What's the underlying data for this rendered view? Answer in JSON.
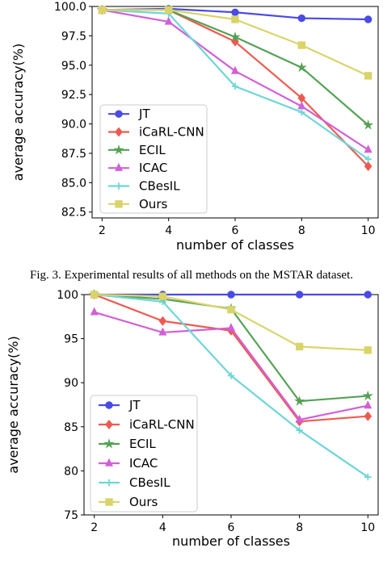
{
  "caption": "Fig. 3.   Experimental results of all methods on the MSTAR dataset.",
  "colors": {
    "JT": "#4a4ae6",
    "iCaRL-CNN": "#ee5a50",
    "ECIL": "#55a155",
    "ICAC": "#d160d6",
    "CBesIL": "#6fd6d6",
    "Ours": "#d9d46a"
  },
  "chart_data": [
    {
      "type": "line",
      "title": "",
      "xlabel": "number of classes",
      "ylabel": "average accuracy(%)",
      "x": [
        2,
        4,
        6,
        8,
        10
      ],
      "xlim": [
        1.7,
        10.3
      ],
      "ylim": [
        82.0,
        100.0
      ],
      "yticks": [
        82.5,
        85.0,
        87.5,
        90.0,
        92.5,
        95.0,
        97.5,
        100.0
      ],
      "ytick_labels": [
        "82.5",
        "85.0",
        "87.5",
        "90.0",
        "92.5",
        "95.0",
        "97.5",
        "100.0"
      ],
      "xtick_labels": [
        "2",
        "4",
        "6",
        "8",
        "10"
      ],
      "legend_position": "lower-left",
      "grid": false,
      "series": [
        {
          "name": "JT",
          "marker": "circle",
          "values": [
            99.7,
            99.8,
            99.5,
            99.0,
            98.9
          ]
        },
        {
          "name": "iCaRL-CNN",
          "marker": "diamond",
          "values": [
            99.7,
            99.7,
            97.0,
            92.2,
            86.4
          ]
        },
        {
          "name": "ECIL",
          "marker": "star",
          "values": [
            99.7,
            99.7,
            97.4,
            94.8,
            89.9
          ]
        },
        {
          "name": "ICAC",
          "marker": "triangle",
          "values": [
            99.7,
            98.7,
            94.5,
            91.5,
            87.8
          ]
        },
        {
          "name": "CBesIL",
          "marker": "plus",
          "values": [
            99.7,
            99.4,
            93.2,
            91.0,
            87.0
          ]
        },
        {
          "name": "Ours",
          "marker": "square",
          "values": [
            99.7,
            99.7,
            98.9,
            96.7,
            94.1
          ]
        }
      ]
    },
    {
      "type": "line",
      "title": "",
      "xlabel": "number of classes",
      "ylabel": "average accuracy(%)",
      "x": [
        2,
        4,
        6,
        8,
        10
      ],
      "xlim": [
        1.7,
        10.3
      ],
      "ylim": [
        75.0,
        100.0
      ],
      "yticks": [
        75,
        80,
        85,
        90,
        95,
        100
      ],
      "ytick_labels": [
        "75",
        "80",
        "85",
        "90",
        "95",
        "100"
      ],
      "xtick_labels": [
        "2",
        "4",
        "6",
        "8",
        "10"
      ],
      "legend_position": "lower-left",
      "grid": false,
      "series": [
        {
          "name": "JT",
          "marker": "circle",
          "values": [
            100.0,
            100.0,
            100.0,
            100.0,
            100.0
          ]
        },
        {
          "name": "iCaRL-CNN",
          "marker": "diamond",
          "values": [
            100.0,
            97.0,
            95.9,
            85.6,
            86.2
          ]
        },
        {
          "name": "ECIL",
          "marker": "star",
          "values": [
            100.0,
            99.5,
            98.4,
            87.9,
            88.5
          ]
        },
        {
          "name": "ICAC",
          "marker": "triangle",
          "values": [
            98.0,
            95.7,
            96.2,
            85.8,
            87.4
          ]
        },
        {
          "name": "CBesIL",
          "marker": "plus",
          "values": [
            100.0,
            99.2,
            90.8,
            84.6,
            79.3
          ]
        },
        {
          "name": "Ours",
          "marker": "square",
          "values": [
            100.0,
            99.8,
            98.3,
            94.1,
            93.7
          ]
        }
      ]
    }
  ]
}
